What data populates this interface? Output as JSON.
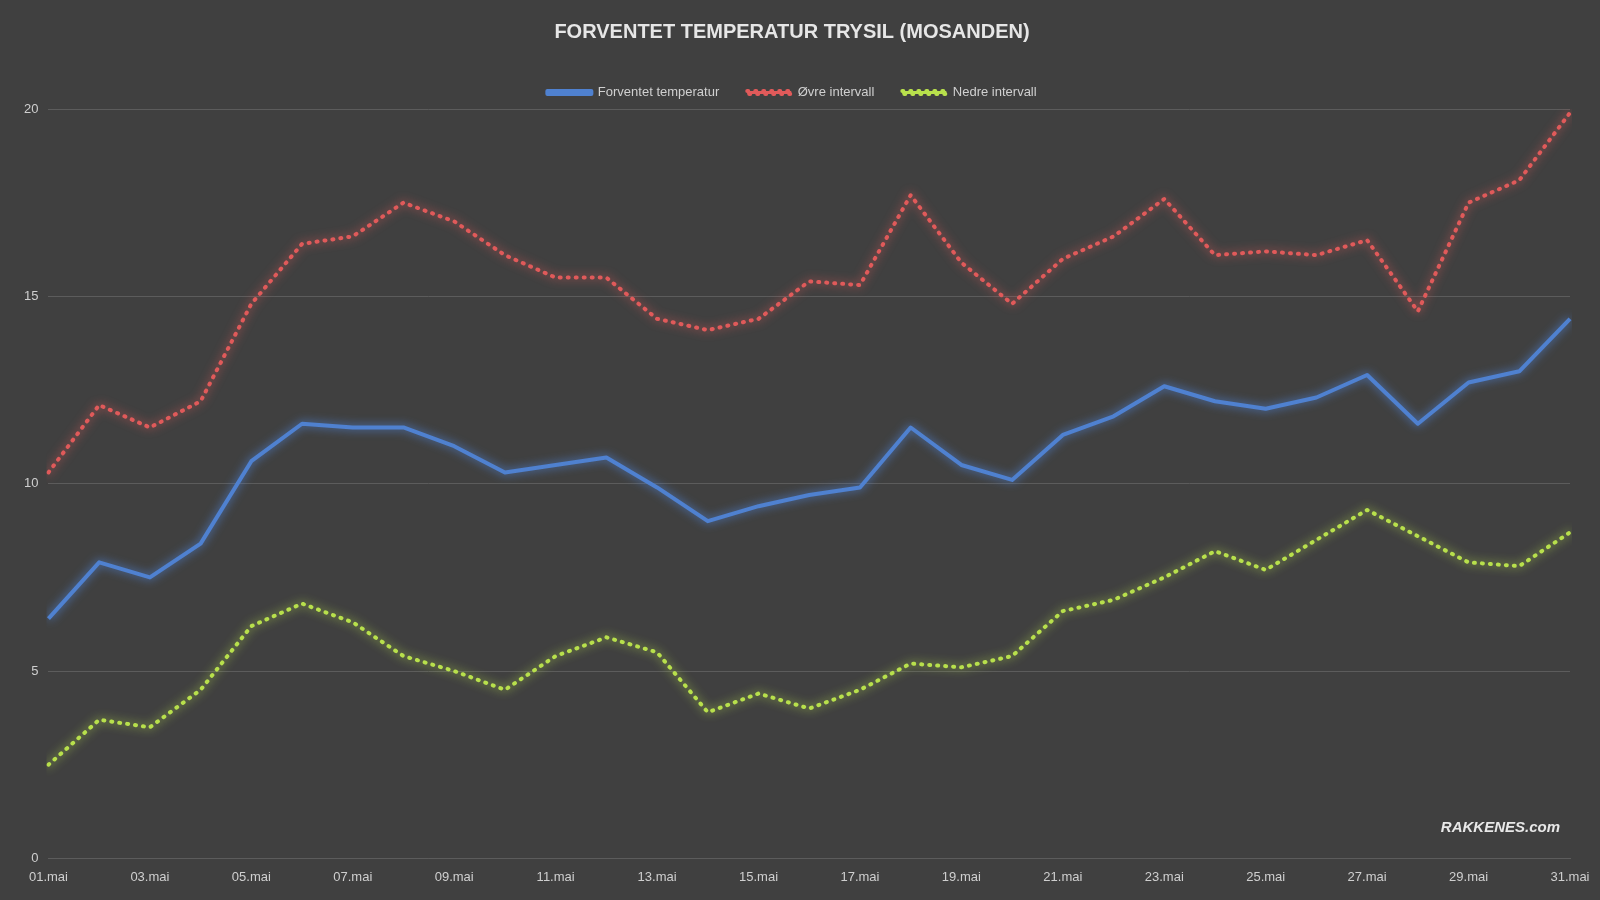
{
  "chart_data": {
    "type": "line",
    "title": "FORVENTET TEMPERATUR TRYSIL (MOSANDEN)",
    "categories": [
      "01.mai",
      null,
      "03.mai",
      null,
      "05.mai",
      null,
      "07.mai",
      null,
      "09.mai",
      null,
      "11.mai",
      null,
      "13.mai",
      null,
      "15.mai",
      null,
      "17.mai",
      null,
      "19.mai",
      null,
      "21.mai",
      null,
      "23.mai",
      null,
      "25.mai",
      null,
      "27.mai",
      null,
      "29.mai",
      null,
      "31.mai"
    ],
    "series": [
      {
        "name": "Forventet temperatur",
        "color": "#4f81d0",
        "line_style": "solid",
        "values": [
          6.4,
          7.9,
          7.5,
          8.4,
          10.6,
          11.6,
          11.5,
          11.5,
          11.0,
          10.3,
          10.5,
          10.7,
          9.9,
          9.0,
          9.4,
          9.7,
          9.9,
          11.5,
          10.5,
          10.1,
          11.3,
          11.8,
          12.6,
          12.2,
          12.0,
          12.3,
          12.9,
          11.6,
          12.7,
          13.0,
          14.4
        ]
      },
      {
        "name": "Øvre intervall",
        "color": "#e05a5a",
        "line_style": "dotted",
        "values": [
          10.3,
          12.1,
          11.5,
          12.2,
          14.8,
          16.4,
          16.6,
          17.5,
          17.0,
          16.1,
          15.5,
          15.5,
          14.4,
          14.1,
          14.4,
          15.4,
          15.3,
          17.7,
          15.9,
          14.8,
          16.0,
          16.6,
          17.6,
          16.1,
          16.2,
          16.1,
          16.5,
          14.6,
          17.5,
          18.1,
          19.9
        ]
      },
      {
        "name": "Nedre intervall",
        "color": "#b8e04c",
        "line_style": "dotted",
        "values": [
          2.5,
          3.7,
          3.5,
          4.5,
          6.2,
          6.8,
          6.3,
          5.4,
          5.0,
          4.5,
          5.4,
          5.9,
          5.5,
          3.9,
          4.4,
          4.0,
          4.5,
          5.2,
          5.1,
          5.4,
          6.6,
          6.9,
          7.5,
          8.2,
          7.7,
          8.5,
          9.3,
          8.6,
          7.9,
          7.8,
          8.7
        ]
      }
    ],
    "ylim": [
      0,
      20
    ],
    "yticks": [
      0,
      5,
      10,
      15,
      20
    ],
    "grid": true,
    "legend": "top",
    "annotations": [
      "RAKKENES.com"
    ]
  }
}
